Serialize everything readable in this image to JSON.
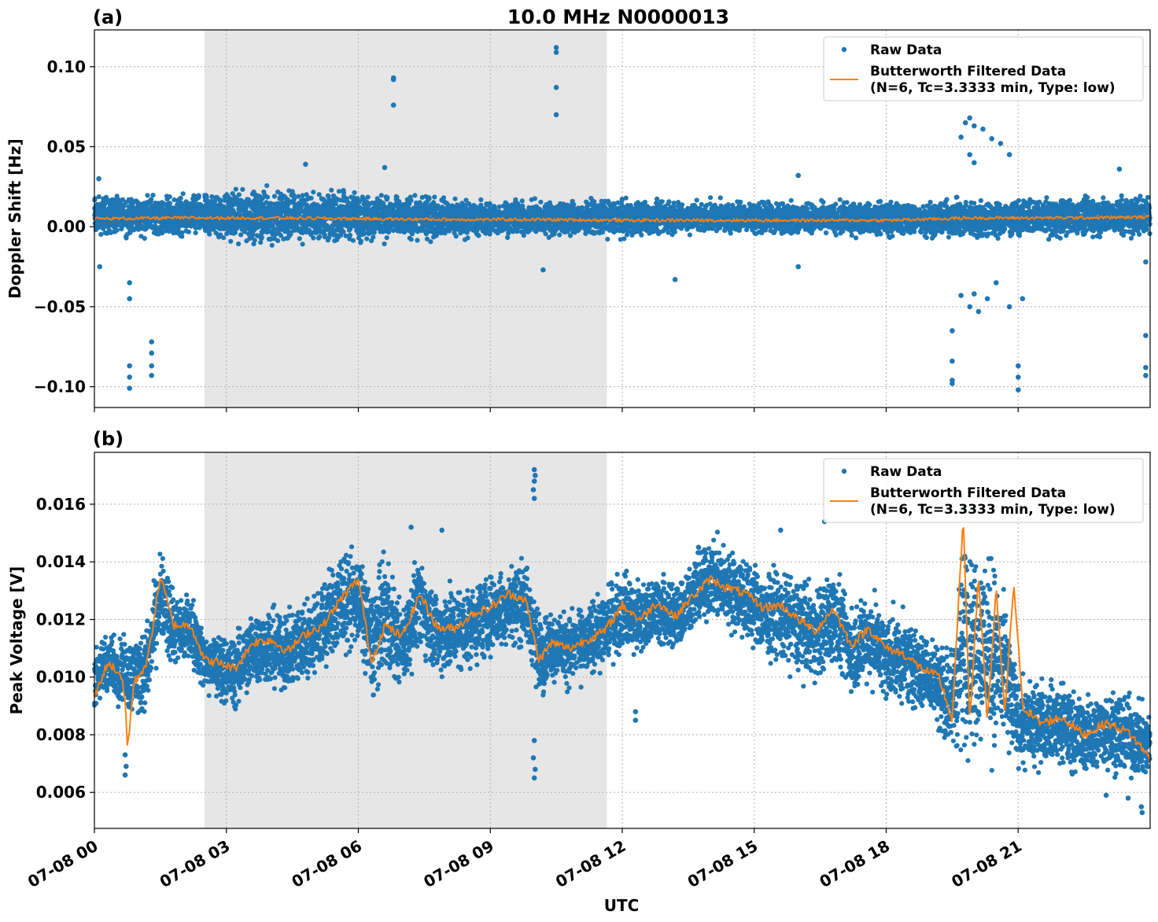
{
  "figure": {
    "title": "10.0 MHz N0000013",
    "xlabel": "UTC",
    "colors": {
      "raw": "#1f77b4",
      "filtered": "#ff7f0e",
      "shade": "#e6e6e6",
      "grid": "#b0b0b0"
    },
    "shaded_interval_hours": [
      2.5,
      11.65
    ]
  },
  "legend": {
    "raw_label": "Raw Data",
    "filtered_label_line1": "Butterworth Filtered Data",
    "filtered_label_line2": "(N=6, Tc=3.3333 min, Type: low)",
    "placement": "top-right"
  },
  "chart_data": [
    {
      "type": "scatter",
      "panel": "(a)",
      "title": "10.0 MHz N0000013",
      "xlabel": "UTC",
      "ylabel": "Doppler Shift [Hz]",
      "xlim_hours": [
        0,
        24
      ],
      "ylim": [
        -0.113,
        0.123
      ],
      "y_ticks": [
        -0.1,
        -0.05,
        0.0,
        0.05,
        0.1
      ],
      "y_tick_labels": [
        "−0.10",
        "−0.05",
        "0.00",
        "0.05",
        "0.10"
      ],
      "x_ticks_hours": [
        0,
        3,
        6,
        9,
        12,
        15,
        18,
        21
      ],
      "x_tick_labels": [
        "07-08 00",
        "07-08 03",
        "07-08 06",
        "07-08 09",
        "07-08 12",
        "07-08 15",
        "07-08 18",
        "07-08 21"
      ],
      "grid": true,
      "series": [
        {
          "name": "Butterworth Filtered Data",
          "kind": "line",
          "x_hours": [
            0,
            2,
            4,
            6,
            8,
            10,
            12,
            14,
            16,
            18,
            20,
            22,
            24
          ],
          "y": [
            0.005,
            0.0055,
            0.0055,
            0.005,
            0.0045,
            0.0045,
            0.004,
            0.004,
            0.004,
            0.004,
            0.0055,
            0.0055,
            0.006
          ]
        },
        {
          "name": "Raw Data",
          "kind": "scatter",
          "band": {
            "x_hours": [
              0,
              2,
              4,
              6,
              8,
              10,
              12,
              14,
              16,
              18,
              20,
              22,
              24
            ],
            "upper": [
              0.022,
              0.022,
              0.027,
              0.025,
              0.02,
              0.018,
              0.019,
              0.018,
              0.017,
              0.018,
              0.02,
              0.02,
              0.022
            ],
            "lower": [
              -0.008,
              -0.008,
              -0.014,
              -0.012,
              -0.01,
              -0.008,
              -0.008,
              -0.006,
              -0.007,
              -0.008,
              -0.01,
              -0.008,
              -0.008
            ]
          },
          "outliers": [
            [
              0.1,
              0.03
            ],
            [
              0.12,
              -0.025
            ],
            [
              0.8,
              -0.035
            ],
            [
              0.8,
              -0.045
            ],
            [
              0.8,
              -0.087
            ],
            [
              0.8,
              -0.094
            ],
            [
              0.8,
              -0.101
            ],
            [
              1.3,
              -0.072
            ],
            [
              1.3,
              -0.079
            ],
            [
              1.3,
              -0.087
            ],
            [
              1.3,
              -0.093
            ],
            [
              4.8,
              0.039
            ],
            [
              6.6,
              0.037
            ],
            [
              6.8,
              0.092
            ],
            [
              6.8,
              0.093
            ],
            [
              6.8,
              0.076
            ],
            [
              10.5,
              0.112
            ],
            [
              10.5,
              0.109
            ],
            [
              10.5,
              0.087
            ],
            [
              10.5,
              0.07
            ],
            [
              10.2,
              -0.027
            ],
            [
              13.2,
              -0.033
            ],
            [
              16.0,
              0.032
            ],
            [
              16.0,
              -0.025
            ],
            [
              19.5,
              -0.065
            ],
            [
              19.5,
              -0.084
            ],
            [
              19.5,
              -0.096
            ],
            [
              19.5,
              -0.098
            ],
            [
              19.9,
              0.068
            ],
            [
              19.8,
              0.065
            ],
            [
              20.0,
              0.063
            ],
            [
              20.2,
              0.061
            ],
            [
              19.7,
              0.056
            ],
            [
              20.4,
              0.055
            ],
            [
              20.6,
              0.052
            ],
            [
              19.9,
              0.045
            ],
            [
              20.0,
              0.04
            ],
            [
              20.8,
              0.045
            ],
            [
              19.7,
              -0.043
            ],
            [
              19.9,
              -0.05
            ],
            [
              20.1,
              -0.053
            ],
            [
              20.0,
              -0.042
            ],
            [
              20.3,
              -0.045
            ],
            [
              20.5,
              -0.035
            ],
            [
              20.8,
              -0.05
            ],
            [
              21.1,
              -0.045
            ],
            [
              21.0,
              -0.087
            ],
            [
              21.0,
              -0.094
            ],
            [
              21.0,
              -0.102
            ],
            [
              23.3,
              0.036
            ],
            [
              23.9,
              -0.022
            ],
            [
              23.9,
              -0.068
            ],
            [
              23.9,
              -0.088
            ],
            [
              23.9,
              -0.093
            ]
          ]
        }
      ]
    },
    {
      "type": "scatter",
      "panel": "(b)",
      "xlabel": "UTC",
      "ylabel": "Peak Voltage [V]",
      "xlim_hours": [
        0,
        24
      ],
      "ylim": [
        0.00475,
        0.0178
      ],
      "y_ticks": [
        0.006,
        0.008,
        0.01,
        0.012,
        0.014,
        0.016
      ],
      "y_tick_labels": [
        "0.006",
        "0.008",
        "0.010",
        "0.012",
        "0.014",
        "0.016"
      ],
      "x_ticks_hours": [
        0,
        3,
        6,
        9,
        12,
        15,
        18,
        21
      ],
      "x_tick_labels": [
        "07-08 00",
        "07-08 03",
        "07-08 06",
        "07-08 09",
        "07-08 12",
        "07-08 15",
        "07-08 18",
        "07-08 21"
      ],
      "grid": true,
      "series": [
        {
          "name": "Butterworth Filtered Data",
          "kind": "line",
          "x_hours": [
            0,
            0.3,
            0.6,
            0.7,
            0.75,
            0.9,
            1.2,
            1.5,
            1.8,
            2.2,
            2.5,
            2.8,
            3.2,
            3.6,
            4.0,
            4.4,
            4.8,
            5.2,
            5.6,
            6.0,
            6.3,
            6.6,
            7.0,
            7.4,
            7.8,
            8.2,
            8.6,
            9.0,
            9.4,
            9.8,
            10.1,
            10.4,
            10.8,
            11.2,
            11.6,
            12.0,
            12.4,
            12.8,
            13.2,
            13.6,
            14.0,
            14.4,
            14.8,
            15.2,
            15.6,
            16.0,
            16.4,
            16.8,
            17.2,
            17.6,
            18.0,
            18.4,
            18.8,
            19.2,
            19.5,
            19.75,
            19.9,
            20.1,
            20.3,
            20.5,
            20.7,
            20.9,
            21.1,
            21.5,
            22.0,
            22.5,
            23.0,
            23.5,
            24.0
          ],
          "y": [
            0.0093,
            0.0105,
            0.0101,
            0.0092,
            0.0075,
            0.0098,
            0.0105,
            0.0135,
            0.0118,
            0.0118,
            0.0106,
            0.0105,
            0.0103,
            0.0112,
            0.0113,
            0.0109,
            0.0115,
            0.0118,
            0.0127,
            0.0134,
            0.0105,
            0.0118,
            0.0114,
            0.0129,
            0.0117,
            0.0117,
            0.0122,
            0.0124,
            0.0129,
            0.0127,
            0.0106,
            0.0112,
            0.011,
            0.0113,
            0.0116,
            0.0125,
            0.012,
            0.0126,
            0.0121,
            0.0128,
            0.0134,
            0.0131,
            0.0129,
            0.0124,
            0.0125,
            0.012,
            0.0116,
            0.0124,
            0.0111,
            0.0117,
            0.011,
            0.0108,
            0.0103,
            0.01,
            0.0085,
            0.0155,
            0.0085,
            0.0135,
            0.0085,
            0.013,
            0.0087,
            0.0133,
            0.009,
            0.0084,
            0.0086,
            0.008,
            0.0084,
            0.0081,
            0.0072
          ]
        },
        {
          "name": "Raw Data",
          "kind": "scatter",
          "band": {
            "x_hours": [
              0,
              0.3,
              0.6,
              0.9,
              1.2,
              1.5,
              1.8,
              2.2,
              2.5,
              2.8,
              3.2,
              3.6,
              4.0,
              4.4,
              4.8,
              5.2,
              5.6,
              6.0,
              6.3,
              6.6,
              7.0,
              7.4,
              7.8,
              8.2,
              8.6,
              9.0,
              9.4,
              9.8,
              10.1,
              10.4,
              10.8,
              11.2,
              11.6,
              12.0,
              12.4,
              12.8,
              13.2,
              13.6,
              14.0,
              14.4,
              14.8,
              15.2,
              15.6,
              16.0,
              16.4,
              16.8,
              17.2,
              17.6,
              18.0,
              18.4,
              18.8,
              19.2,
              19.5,
              19.8,
              20.1,
              20.4,
              20.7,
              21.0,
              21.5,
              22.0,
              22.5,
              23.0,
              23.5,
              24.0
            ],
            "upper": [
              0.0112,
              0.0118,
              0.0116,
              0.0118,
              0.0122,
              0.0145,
              0.0132,
              0.0131,
              0.012,
              0.0118,
              0.0118,
              0.0126,
              0.0128,
              0.0125,
              0.0132,
              0.0138,
              0.0147,
              0.0146,
              0.0135,
              0.0148,
              0.013,
              0.0148,
              0.0134,
              0.0135,
              0.0136,
              0.0139,
              0.0143,
              0.0146,
              0.0125,
              0.0127,
              0.0126,
              0.0128,
              0.0133,
              0.014,
              0.0136,
              0.0139,
              0.0137,
              0.0144,
              0.0153,
              0.0148,
              0.0145,
              0.014,
              0.014,
              0.0138,
              0.0134,
              0.0143,
              0.0128,
              0.0134,
              0.0127,
              0.0124,
              0.0122,
              0.0116,
              0.0112,
              0.0163,
              0.0154,
              0.015,
              0.0138,
              0.0102,
              0.0102,
              0.0101,
              0.0096,
              0.01,
              0.0098,
              0.009
            ],
            "lower": [
              0.0088,
              0.0091,
              0.0088,
              0.0084,
              0.0086,
              0.011,
              0.01,
              0.0103,
              0.0092,
              0.0088,
              0.0085,
              0.0094,
              0.0093,
              0.0092,
              0.0094,
              0.0098,
              0.0105,
              0.0108,
              0.0087,
              0.0096,
              0.0092,
              0.0105,
              0.0096,
              0.0097,
              0.0101,
              0.0103,
              0.0108,
              0.0106,
              0.009,
              0.0096,
              0.0094,
              0.0097,
              0.01,
              0.0107,
              0.0103,
              0.0108,
              0.0105,
              0.0113,
              0.0116,
              0.0114,
              0.0109,
              0.0104,
              0.0102,
              0.0098,
              0.0094,
              0.0101,
              0.009,
              0.0094,
              0.0088,
              0.0088,
              0.0084,
              0.0078,
              0.007,
              0.0066,
              0.0066,
              0.0066,
              0.0065,
              0.0065,
              0.0066,
              0.0066,
              0.0063,
              0.0064,
              0.0061,
              0.0062
            ]
          },
          "outliers": [
            [
              0.7,
              0.0066
            ],
            [
              0.72,
              0.0069
            ],
            [
              0.7,
              0.0073
            ],
            [
              10.0,
              0.0172
            ],
            [
              10.02,
              0.017
            ],
            [
              10.0,
              0.0168
            ],
            [
              9.98,
              0.0165
            ],
            [
              10.0,
              0.0162
            ],
            [
              10.0,
              0.0065
            ],
            [
              10.02,
              0.0068
            ],
            [
              9.98,
              0.0072
            ],
            [
              10.0,
              0.0078
            ],
            [
              7.2,
              0.0152
            ],
            [
              7.9,
              0.0151
            ],
            [
              16.6,
              0.0154
            ],
            [
              15.6,
              0.0151
            ],
            [
              12.3,
              0.0088
            ],
            [
              12.3,
              0.0085
            ],
            [
              19.7,
              0.0163
            ],
            [
              19.75,
              0.0158
            ],
            [
              23.8,
              0.0055
            ],
            [
              23.82,
              0.0053
            ],
            [
              23.5,
              0.0058
            ],
            [
              23.0,
              0.0059
            ]
          ]
        }
      ]
    }
  ]
}
